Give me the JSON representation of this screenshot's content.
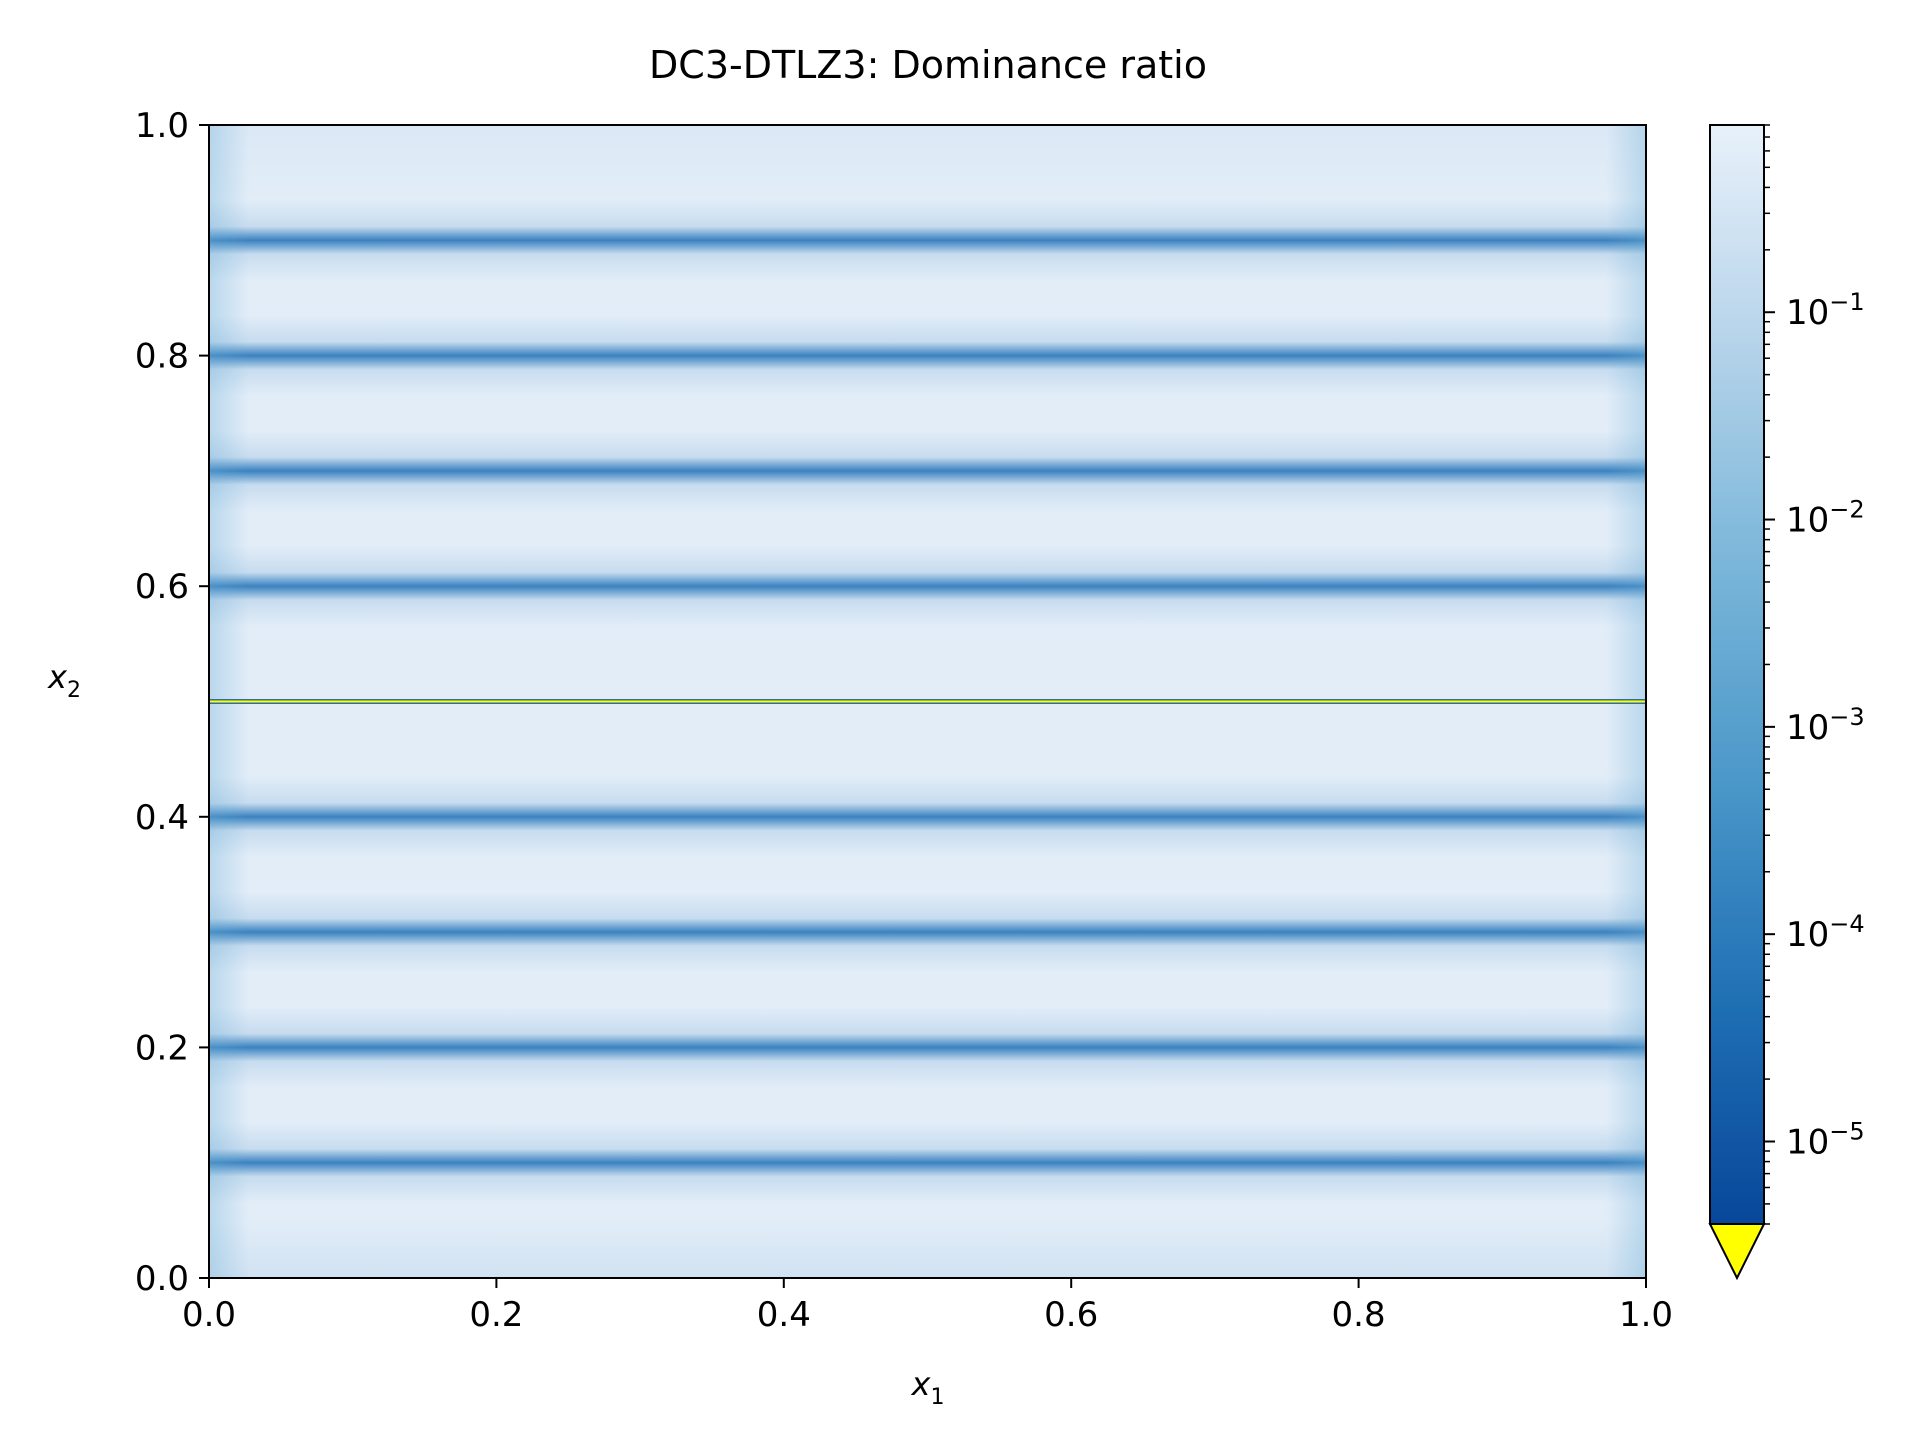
{
  "chart_data": {
    "type": "heatmap",
    "title": "DC3-DTLZ3: Dominance ratio",
    "xlabel": {
      "base": "x",
      "sub": "1"
    },
    "ylabel": {
      "base": "x",
      "sub": "2"
    },
    "xlim": [
      0.0,
      1.0
    ],
    "ylim": [
      0.0,
      1.0
    ],
    "xticks": [
      {
        "value": 0.0,
        "label": "0.0"
      },
      {
        "value": 0.2,
        "label": "0.2"
      },
      {
        "value": 0.4,
        "label": "0.4"
      },
      {
        "value": 0.6,
        "label": "0.6"
      },
      {
        "value": 0.8,
        "label": "0.8"
      },
      {
        "value": 1.0,
        "label": "1.0"
      }
    ],
    "yticks": [
      {
        "value": 0.0,
        "label": "0.0"
      },
      {
        "value": 0.2,
        "label": "0.2"
      },
      {
        "value": 0.4,
        "label": "0.4"
      },
      {
        "value": 0.6,
        "label": "0.6"
      },
      {
        "value": 0.8,
        "label": "0.8"
      },
      {
        "value": 1.0,
        "label": "1.0"
      }
    ],
    "colorscale": "Blues (reversed)",
    "color_scale_type": "log",
    "color_range": [
      4e-06,
      0.8
    ],
    "under_color": "#ffff00",
    "colorbar": {
      "ticks": [
        {
          "value": 0.1,
          "base": "10",
          "exp": "−1"
        },
        {
          "value": 0.01,
          "base": "10",
          "exp": "−2"
        },
        {
          "value": 0.001,
          "base": "10",
          "exp": "−3"
        },
        {
          "value": 0.0001,
          "base": "10",
          "exp": "−4"
        },
        {
          "value": 1e-05,
          "base": "10",
          "exp": "−5"
        }
      ],
      "extend": "min"
    },
    "dark_bands_x2": [
      0.1,
      0.2,
      0.3,
      0.4,
      0.6,
      0.7,
      0.8,
      0.9
    ],
    "min_value_line_x2": 0.5,
    "grid": false,
    "legend": "none"
  }
}
